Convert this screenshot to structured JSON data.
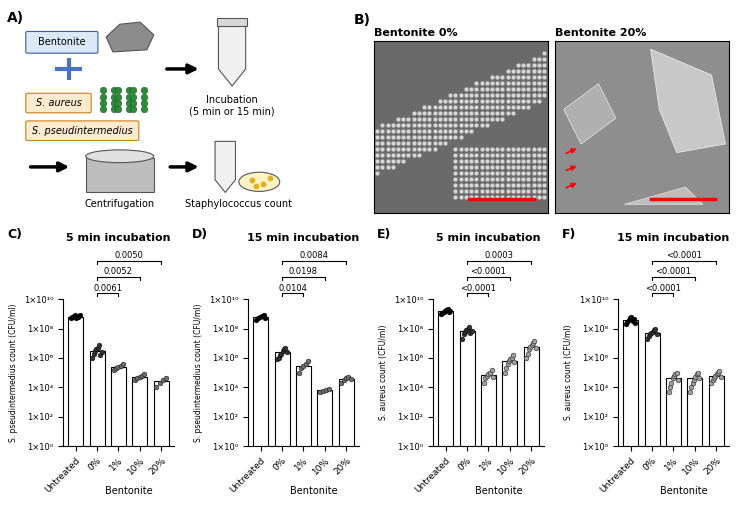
{
  "panel_a": {
    "label": "A)",
    "material": "Bentonite",
    "bacteria": [
      "S. aureus",
      "S. pseudintermedius"
    ],
    "steps": [
      "Incubation\n(5 min or 15 min)",
      "Centrifugation",
      "Staphylococcus count"
    ]
  },
  "panel_b": {
    "label": "B)",
    "images": [
      "Bentonite 0%",
      "Bentonite 20%"
    ]
  },
  "chart_data": [
    {
      "type": "bar",
      "panel": "C)",
      "title": "5 min incubation",
      "ylabel": "S. pseudintermedius count (CFU/ml)",
      "xlabel": "Bentonite",
      "categories": [
        "Untreated",
        "0%",
        "1%",
        "10%",
        "20%"
      ],
      "values": [
        650000000.0,
        3000000.0,
        250000.0,
        50000.0,
        25000.0
      ],
      "points": [
        [
          500000000.0,
          600000000.0,
          700000000.0,
          800000000.0,
          550000000.0,
          650000000.0,
          750000000.0,
          900000000.0
        ],
        [
          1000000.0,
          2000000.0,
          3000000.0,
          4000000.0,
          5000000.0,
          8000000.0,
          1500000.0,
          2500000.0
        ],
        [
          150000.0,
          200000.0,
          250000.0,
          300000.0,
          400000.0
        ],
        [
          30000.0,
          40000.0,
          50000.0,
          60000.0,
          80000.0
        ],
        [
          10000.0,
          20000.0,
          30000.0,
          40000.0
        ]
      ],
      "colors": [
        "#000000",
        "#333333",
        "#6e6e6e",
        "#6e6e6e",
        "#6e6e6e"
      ],
      "log": "y",
      "ylim": [
        1,
        10000000000.0
      ],
      "yticks": [
        {
          "value": 1,
          "label": "1×10⁰"
        },
        {
          "value": 100,
          "label": "1×10²"
        },
        {
          "value": 10000,
          "label": "1×10⁴"
        },
        {
          "value": 1000000,
          "label": "1×10⁶"
        },
        {
          "value": 100000000,
          "label": "1×10⁸"
        },
        {
          "value": 10000000000,
          "label": "1×10¹⁰"
        }
      ],
      "comparisons": [
        {
          "from": "0%",
          "to": "1%",
          "label": "0.0061"
        },
        {
          "from": "0%",
          "to": "10%",
          "label": "0.0052"
        },
        {
          "from": "0%",
          "to": "20%",
          "label": "0.0050"
        }
      ]
    },
    {
      "type": "bar",
      "panel": "D)",
      "title": "15 min incubation",
      "ylabel": "S. pseudintermedius count (CFU/ml)",
      "xlabel": "Bentonite",
      "categories": [
        "Untreated",
        "0%",
        "1%",
        "10%",
        "20%"
      ],
      "values": [
        600000000.0,
        2500000.0,
        300000.0,
        6500.0,
        35000.0
      ],
      "points": [
        [
          400000000.0,
          500000000.0,
          600000000.0,
          700000000.0,
          800000000.0,
          550000000.0
        ],
        [
          800000.0,
          1000000.0,
          1500000.0,
          2000000.0,
          3000000.0,
          4000000.0,
          5000000.0,
          2500000.0
        ],
        [
          100000.0,
          200000.0,
          300000.0,
          400000.0,
          600000.0
        ],
        [
          5000.0,
          6000.0,
          7000.0,
          8000.0
        ],
        [
          20000.0,
          30000.0,
          40000.0,
          50000.0,
          35000.0
        ]
      ],
      "colors": [
        "#000000",
        "#333333",
        "#6e6e6e",
        "#6e6e6e",
        "#6e6e6e"
      ],
      "log": "y",
      "ylim": [
        1,
        10000000000.0
      ],
      "yticks": [
        {
          "value": 1,
          "label": "1×10⁰"
        },
        {
          "value": 100,
          "label": "1×10²"
        },
        {
          "value": 10000,
          "label": "1×10⁴"
        },
        {
          "value": 1000000,
          "label": "1×10⁶"
        },
        {
          "value": 100000000,
          "label": "1×10⁸"
        },
        {
          "value": 10000000000,
          "label": "1×10¹⁰"
        }
      ],
      "comparisons": [
        {
          "from": "0%",
          "to": "1%",
          "label": "0.0104"
        },
        {
          "from": "0%",
          "to": "10%",
          "label": "0.0198"
        },
        {
          "from": "0%",
          "to": "20%",
          "label": "0.0084"
        }
      ]
    },
    {
      "type": "bar",
      "panel": "E)",
      "title": "5 min incubation",
      "ylabel": "S. aureus count (CFU/ml)",
      "xlabel": "Bentonite",
      "categories": [
        "Untreated",
        "0%",
        "1%",
        "10%",
        "20%"
      ],
      "values": [
        1500000000.0,
        70000000.0,
        70000.0,
        600000.0,
        6000000.0
      ],
      "points": [
        [
          1000000000.0,
          1200000000.0,
          1400000000.0,
          1600000000.0,
          1800000000.0,
          2000000000.0,
          1300000000.0,
          1500000000.0
        ],
        [
          20000000.0,
          40000000.0,
          60000000.0,
          80000000.0,
          100000000.0,
          120000000.0,
          50000000.0,
          70000000.0
        ],
        [
          20000.0,
          40000.0,
          60000.0,
          80000.0,
          100000.0,
          150000.0,
          50000.0
        ],
        [
          100000.0,
          200000.0,
          400000.0,
          600000.0,
          800000.0,
          1000000.0,
          1500000.0,
          500000.0
        ],
        [
          1000000.0,
          2000000.0,
          4000000.0,
          6000000.0,
          8000000.0,
          10000000.0,
          15000000.0,
          5000000.0
        ]
      ],
      "colors": [
        "#000000",
        "#333333",
        "#a0a0a0",
        "#a0a0a0",
        "#a0a0a0"
      ],
      "log": "y",
      "ylim": [
        1,
        10000000000.0
      ],
      "yticks": [
        {
          "value": 1,
          "label": "1×10⁰"
        },
        {
          "value": 100,
          "label": "1×10²"
        },
        {
          "value": 10000,
          "label": "1×10⁴"
        },
        {
          "value": 1000000,
          "label": "1×10⁶"
        },
        {
          "value": 100000000,
          "label": "1×10⁸"
        },
        {
          "value": 10000000000,
          "label": "1×10¹⁰"
        }
      ],
      "comparisons": [
        {
          "from": "0%",
          "to": "1%",
          "label": "<0.0001"
        },
        {
          "from": "0%",
          "to": "10%",
          "label": "<0.0001"
        },
        {
          "from": "0%",
          "to": "20%",
          "label": "0.0003"
        }
      ]
    },
    {
      "type": "bar",
      "panel": "F)",
      "title": "15 min incubation",
      "ylabel": "S. aureus count (CFU/ml)",
      "xlabel": "Bentonite",
      "categories": [
        "Untreated",
        "0%",
        "1%",
        "10%",
        "20%"
      ],
      "values": [
        400000000.0,
        50000000.0,
        40000.0,
        40000.0,
        60000.0
      ],
      "points": [
        [
          200000000.0,
          300000000.0,
          400000000.0,
          500000000.0,
          600000000.0,
          350000000.0,
          450000000.0,
          250000000.0
        ],
        [
          20000000.0,
          30000000.0,
          40000000.0,
          50000000.0,
          60000000.0,
          80000000.0,
          100000000.0,
          45000000.0
        ],
        [
          5000.0,
          10000.0,
          20000.0,
          40000.0,
          60000.0,
          80000.0,
          100000.0,
          30000.0
        ],
        [
          5000.0,
          10000.0,
          20000.0,
          30000.0,
          50000.0,
          80000.0,
          100000.0,
          40000.0
        ],
        [
          20000.0,
          30000.0,
          40000.0,
          60000.0,
          80000.0,
          100000.0,
          120000.0,
          50000.0
        ]
      ],
      "colors": [
        "#000000",
        "#333333",
        "#a0a0a0",
        "#a0a0a0",
        "#a0a0a0"
      ],
      "log": "y",
      "ylim": [
        1,
        10000000000.0
      ],
      "yticks": [
        {
          "value": 1,
          "label": "1×10⁰"
        },
        {
          "value": 100,
          "label": "1×10²"
        },
        {
          "value": 10000,
          "label": "1×10⁴"
        },
        {
          "value": 1000000,
          "label": "1×10⁶"
        },
        {
          "value": 100000000,
          "label": "1×10⁸"
        },
        {
          "value": 10000000000,
          "label": "1×10¹⁰"
        }
      ],
      "comparisons": [
        {
          "from": "0%",
          "to": "1%",
          "label": "<0.0001"
        },
        {
          "from": "0%",
          "to": "10%",
          "label": "<0.0001"
        },
        {
          "from": "0%",
          "to": "20%",
          "label": "<0.0001"
        }
      ]
    }
  ]
}
